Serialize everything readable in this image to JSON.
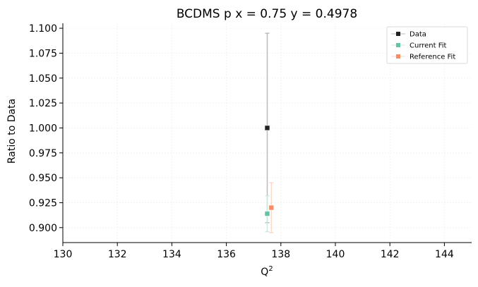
{
  "chart_data": {
    "type": "scatter",
    "title": "BCDMS p x = 0.75 y = 0.4978",
    "xlabel": "Q",
    "xlabel_sup": "2",
    "ylabel": "Ratio to Data",
    "xlim": [
      130,
      145
    ],
    "ylim": [
      0.885,
      1.105
    ],
    "xticks": [
      130,
      132,
      134,
      136,
      138,
      140,
      142,
      144
    ],
    "xtick_labels": [
      "130",
      "132",
      "134",
      "136",
      "138",
      "140",
      "142",
      "144"
    ],
    "yticks": [
      0.9,
      0.925,
      0.95,
      0.975,
      1.0,
      1.025,
      1.05,
      1.075,
      1.1
    ],
    "ytick_labels": [
      "0.900",
      "0.925",
      "0.950",
      "0.975",
      "1.000",
      "1.025",
      "1.050",
      "1.075",
      "1.100"
    ],
    "grid": true,
    "legend_position": "top-right",
    "series": [
      {
        "name": "Data",
        "color": "#222222",
        "err_color": "#bbbbbb",
        "points": [
          {
            "x": 137.5,
            "y": 1.0,
            "err": 0.095
          }
        ]
      },
      {
        "name": "Current Fit",
        "color": "#66c2a5",
        "err_color": "#cfe9df",
        "points": [
          {
            "x": 137.5,
            "y": 0.914,
            "err": 0.018
          }
        ]
      },
      {
        "name": "Reference Fit",
        "color": "#fc8d62",
        "err_color": "#fcd9c9",
        "points": [
          {
            "x": 137.65,
            "y": 0.92,
            "err": 0.025
          }
        ]
      }
    ]
  }
}
